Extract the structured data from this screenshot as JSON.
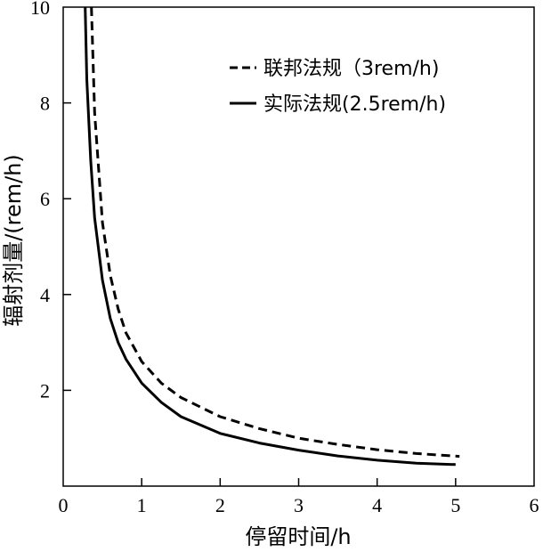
{
  "chart_data": {
    "type": "line",
    "xlabel": "停留时间/h",
    "ylabel": "辐射剂量/(rem/h)",
    "xlim": [
      0,
      6
    ],
    "ylim": [
      0,
      10
    ],
    "xticks": [
      "0",
      "1",
      "2",
      "3",
      "4",
      "5",
      "6"
    ],
    "yticks": [
      "2",
      "4",
      "6",
      "8",
      "10"
    ],
    "grid": false,
    "legend_position": "top-right",
    "series": [
      {
        "name": "联邦法规（3rem/h)",
        "style": "dashed",
        "color": "#000000",
        "x": [
          0.36,
          0.4,
          0.5,
          0.6,
          0.7,
          0.8,
          1.0,
          1.25,
          1.5,
          2.0,
          2.5,
          3.0,
          3.5,
          4.0,
          4.5,
          5.05
        ],
        "y": [
          10.0,
          7.8,
          5.5,
          4.4,
          3.7,
          3.2,
          2.6,
          2.15,
          1.85,
          1.45,
          1.2,
          1.0,
          0.87,
          0.76,
          0.68,
          0.62
        ]
      },
      {
        "name": "实际法规(2.5rem/h)",
        "style": "solid",
        "color": "#000000",
        "x": [
          0.28,
          0.3,
          0.35,
          0.4,
          0.5,
          0.6,
          0.7,
          0.8,
          1.0,
          1.25,
          1.5,
          2.0,
          2.5,
          3.0,
          3.5,
          4.0,
          4.5,
          5.0
        ],
        "y": [
          10.0,
          8.5,
          6.8,
          5.6,
          4.3,
          3.5,
          3.0,
          2.65,
          2.15,
          1.75,
          1.45,
          1.1,
          0.9,
          0.75,
          0.63,
          0.54,
          0.48,
          0.45
        ]
      }
    ]
  }
}
